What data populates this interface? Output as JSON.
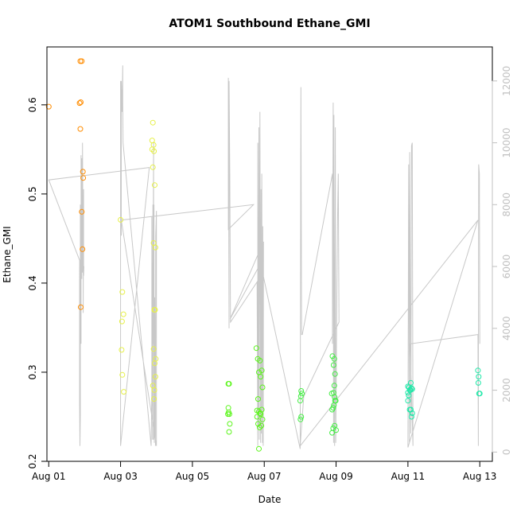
{
  "chart_data": {
    "type": "scatter",
    "title": "ATOM1 Southbound Ethane_GMI",
    "xlabel": "Date",
    "ylabel": "Ethane_GMI",
    "y2label": "",
    "xlim": [
      -0.05,
      12.35
    ],
    "ylim": [
      0.2,
      0.665
    ],
    "y2lim": [
      -300,
      13100
    ],
    "x_ticks": [
      {
        "value": 0,
        "label": "Aug 01"
      },
      {
        "value": 2,
        "label": "Aug 03"
      },
      {
        "value": 4,
        "label": "Aug 05"
      },
      {
        "value": 6,
        "label": "Aug 07"
      },
      {
        "value": 8,
        "label": "Aug 09"
      },
      {
        "value": 10,
        "label": "Aug 11"
      },
      {
        "value": 12,
        "label": "Aug 13"
      }
    ],
    "y_ticks": [
      {
        "value": 0.2,
        "label": "0.2"
      },
      {
        "value": 0.3,
        "label": "0.3"
      },
      {
        "value": 0.4,
        "label": "0.4"
      },
      {
        "value": 0.5,
        "label": "0.5"
      },
      {
        "value": 0.6,
        "label": "0.6"
      }
    ],
    "y2_ticks": [
      {
        "value": 0,
        "label": "0"
      },
      {
        "value": 2000,
        "label": "2000"
      },
      {
        "value": 4000,
        "label": "4000"
      },
      {
        "value": 6000,
        "label": "6000"
      },
      {
        "value": 8000,
        "label": "8000"
      },
      {
        "value": 10000,
        "label": "10000"
      },
      {
        "value": 12000,
        "label": "12000"
      }
    ],
    "grid": false,
    "series": [
      {
        "color": "#ff8c00",
        "points": [
          [
            0.0,
            0.598
          ],
          [
            0.88,
            0.649
          ],
          [
            0.92,
            0.649
          ],
          [
            0.86,
            0.602
          ],
          [
            0.89,
            0.603
          ],
          [
            0.88,
            0.573
          ],
          [
            0.95,
            0.525
          ],
          [
            0.96,
            0.518
          ],
          [
            0.92,
            0.48
          ],
          [
            0.94,
            0.438
          ],
          [
            0.89,
            0.373
          ]
        ]
      },
      {
        "color": "#e6f04a",
        "points": [
          [
            2.0,
            0.471
          ],
          [
            2.05,
            0.39
          ],
          [
            2.08,
            0.365
          ],
          [
            2.04,
            0.357
          ],
          [
            2.03,
            0.325
          ],
          [
            2.05,
            0.297
          ],
          [
            2.09,
            0.278
          ],
          [
            2.9,
            0.58
          ],
          [
            2.88,
            0.56
          ],
          [
            2.92,
            0.555
          ],
          [
            2.88,
            0.55
          ],
          [
            2.93,
            0.548
          ],
          [
            2.9,
            0.53
          ],
          [
            2.95,
            0.51
          ],
          [
            2.92,
            0.445
          ],
          [
            2.97,
            0.44
          ],
          [
            2.94,
            0.37
          ],
          [
            2.96,
            0.37
          ],
          [
            2.92,
            0.326
          ],
          [
            2.98,
            0.315
          ],
          [
            2.95,
            0.31
          ],
          [
            2.97,
            0.295
          ],
          [
            2.9,
            0.285
          ],
          [
            2.94,
            0.28
          ],
          [
            2.93,
            0.27
          ]
        ]
      },
      {
        "color": "#5cf51c",
        "points": [
          [
            5.0,
            0.287
          ],
          [
            5.02,
            0.287
          ],
          [
            5.0,
            0.26
          ],
          [
            5.01,
            0.255
          ],
          [
            4.99,
            0.253
          ],
          [
            5.03,
            0.253
          ],
          [
            5.04,
            0.242
          ],
          [
            5.02,
            0.233
          ],
          [
            5.78,
            0.327
          ],
          [
            5.82,
            0.315
          ],
          [
            5.88,
            0.313
          ],
          [
            5.85,
            0.3
          ],
          [
            5.93,
            0.302
          ],
          [
            5.9,
            0.295
          ],
          [
            5.95,
            0.283
          ],
          [
            5.83,
            0.27
          ],
          [
            5.8,
            0.257
          ],
          [
            5.85,
            0.256
          ],
          [
            5.88,
            0.254
          ],
          [
            5.9,
            0.253
          ],
          [
            5.93,
            0.258
          ],
          [
            5.8,
            0.25
          ],
          [
            5.83,
            0.242
          ],
          [
            5.87,
            0.238
          ],
          [
            5.92,
            0.24
          ],
          [
            5.95,
            0.247
          ],
          [
            5.85,
            0.214
          ]
        ]
      },
      {
        "color": "#44ee44",
        "points": [
          [
            7.03,
            0.279
          ],
          [
            7.05,
            0.276
          ],
          [
            7.02,
            0.273
          ],
          [
            7.0,
            0.268
          ],
          [
            7.03,
            0.25
          ],
          [
            7.01,
            0.247
          ],
          [
            7.9,
            0.318
          ],
          [
            7.95,
            0.315
          ],
          [
            7.93,
            0.308
          ],
          [
            7.97,
            0.298
          ],
          [
            7.95,
            0.285
          ],
          [
            7.88,
            0.276
          ],
          [
            7.93,
            0.277
          ],
          [
            7.96,
            0.272
          ],
          [
            7.99,
            0.268
          ],
          [
            7.94,
            0.263
          ],
          [
            7.97,
            0.268
          ],
          [
            7.89,
            0.258
          ],
          [
            7.92,
            0.26
          ],
          [
            7.96,
            0.24
          ],
          [
            7.92,
            0.237
          ],
          [
            8.0,
            0.235
          ],
          [
            7.89,
            0.232
          ]
        ]
      },
      {
        "color": "#1ee8a8",
        "points": [
          [
            10.0,
            0.284
          ],
          [
            10.03,
            0.283
          ],
          [
            10.05,
            0.28
          ],
          [
            10.0,
            0.277
          ],
          [
            10.02,
            0.274
          ],
          [
            10.08,
            0.288
          ],
          [
            10.1,
            0.282
          ],
          [
            10.07,
            0.28
          ],
          [
            10.12,
            0.281
          ],
          [
            10.0,
            0.268
          ],
          [
            10.05,
            0.258
          ],
          [
            10.08,
            0.258
          ],
          [
            10.12,
            0.254
          ],
          [
            10.1,
            0.25
          ],
          [
            11.95,
            0.302
          ],
          [
            11.97,
            0.295
          ],
          [
            11.96,
            0.288
          ],
          [
            11.98,
            0.276
          ],
          [
            12.0,
            0.276
          ]
        ]
      }
    ],
    "flight_path_color": "#c8c8c8",
    "flight_path": [
      [
        0.0,
        8800
      ],
      [
        0.86,
        6200
      ],
      [
        0.86,
        1500
      ],
      [
        0.87,
        200
      ],
      [
        0.88,
        1200
      ],
      [
        0.88,
        8000
      ],
      [
        0.9,
        3500
      ],
      [
        0.9,
        9600
      ],
      [
        0.92,
        5600
      ],
      [
        0.92,
        9500
      ],
      [
        0.94,
        5800
      ],
      [
        0.94,
        10000
      ],
      [
        0.96,
        5700
      ],
      [
        0.96,
        4500
      ],
      [
        0.97,
        8500
      ],
      [
        0.97,
        5700
      ],
      [
        0.98,
        6000
      ],
      [
        0.86,
        6200
      ],
      [
        0.0,
        8800
      ],
      [
        2.8,
        9200
      ],
      [
        2.0,
        200
      ],
      [
        2.0,
        12000
      ],
      [
        2.02,
        7000
      ],
      [
        2.02,
        12000
      ],
      [
        2.04,
        11000
      ],
      [
        2.06,
        12500
      ],
      [
        2.06,
        11300
      ],
      [
        2.07,
        10000
      ],
      [
        2.85,
        200
      ],
      [
        2.87,
        2000
      ],
      [
        2.87,
        7600
      ],
      [
        2.89,
        400
      ],
      [
        2.9,
        8000
      ],
      [
        2.9,
        3500
      ],
      [
        2.92,
        10000
      ],
      [
        2.92,
        400
      ],
      [
        2.93,
        8000
      ],
      [
        2.94,
        300
      ],
      [
        2.95,
        5000
      ],
      [
        2.96,
        500
      ],
      [
        2.97,
        2500
      ],
      [
        2.97,
        200
      ],
      [
        2.98,
        7000
      ],
      [
        3.0,
        7800
      ],
      [
        3.0,
        200
      ],
      [
        2.02,
        7500
      ],
      [
        5.7,
        8000
      ],
      [
        5.0,
        7200
      ],
      [
        5.0,
        12100
      ],
      [
        5.02,
        4000
      ],
      [
        5.02,
        12000
      ],
      [
        5.04,
        9000
      ],
      [
        5.06,
        4200
      ],
      [
        5.8,
        5500
      ],
      [
        5.82,
        200
      ],
      [
        5.82,
        10000
      ],
      [
        5.84,
        800
      ],
      [
        5.85,
        10500
      ],
      [
        5.86,
        400
      ],
      [
        5.88,
        11000
      ],
      [
        5.9,
        300
      ],
      [
        5.91,
        8500
      ],
      [
        5.92,
        600
      ],
      [
        5.93,
        9000
      ],
      [
        5.95,
        300
      ],
      [
        5.96,
        7300
      ],
      [
        5.97,
        200
      ],
      [
        5.98,
        6800
      ],
      [
        5.05,
        4300
      ],
      [
        5.9,
        6100
      ],
      [
        7.0,
        100
      ],
      [
        7.02,
        11800
      ],
      [
        7.04,
        3800
      ],
      [
        7.06,
        3800
      ],
      [
        7.9,
        9000
      ],
      [
        7.9,
        3500
      ],
      [
        7.92,
        11300
      ],
      [
        7.93,
        300
      ],
      [
        7.94,
        10900
      ],
      [
        7.96,
        200
      ],
      [
        7.98,
        10500
      ],
      [
        7.99,
        300
      ],
      [
        8.02,
        5000
      ],
      [
        8.04,
        7500
      ],
      [
        8.06,
        9000
      ],
      [
        8.08,
        4200
      ],
      [
        7.1,
        1800
      ],
      [
        7.0,
        200
      ],
      [
        11.95,
        7500
      ],
      [
        10.0,
        150
      ],
      [
        10.02,
        9300
      ],
      [
        10.04,
        300
      ],
      [
        10.05,
        9700
      ],
      [
        10.08,
        600
      ],
      [
        10.1,
        9900
      ],
      [
        10.12,
        10000
      ],
      [
        10.14,
        200
      ],
      [
        10.06,
        3500
      ],
      [
        11.95,
        3800
      ],
      [
        11.96,
        200
      ],
      [
        11.97,
        9300
      ],
      [
        11.99,
        9000
      ],
      [
        12.0,
        3500
      ]
    ]
  }
}
